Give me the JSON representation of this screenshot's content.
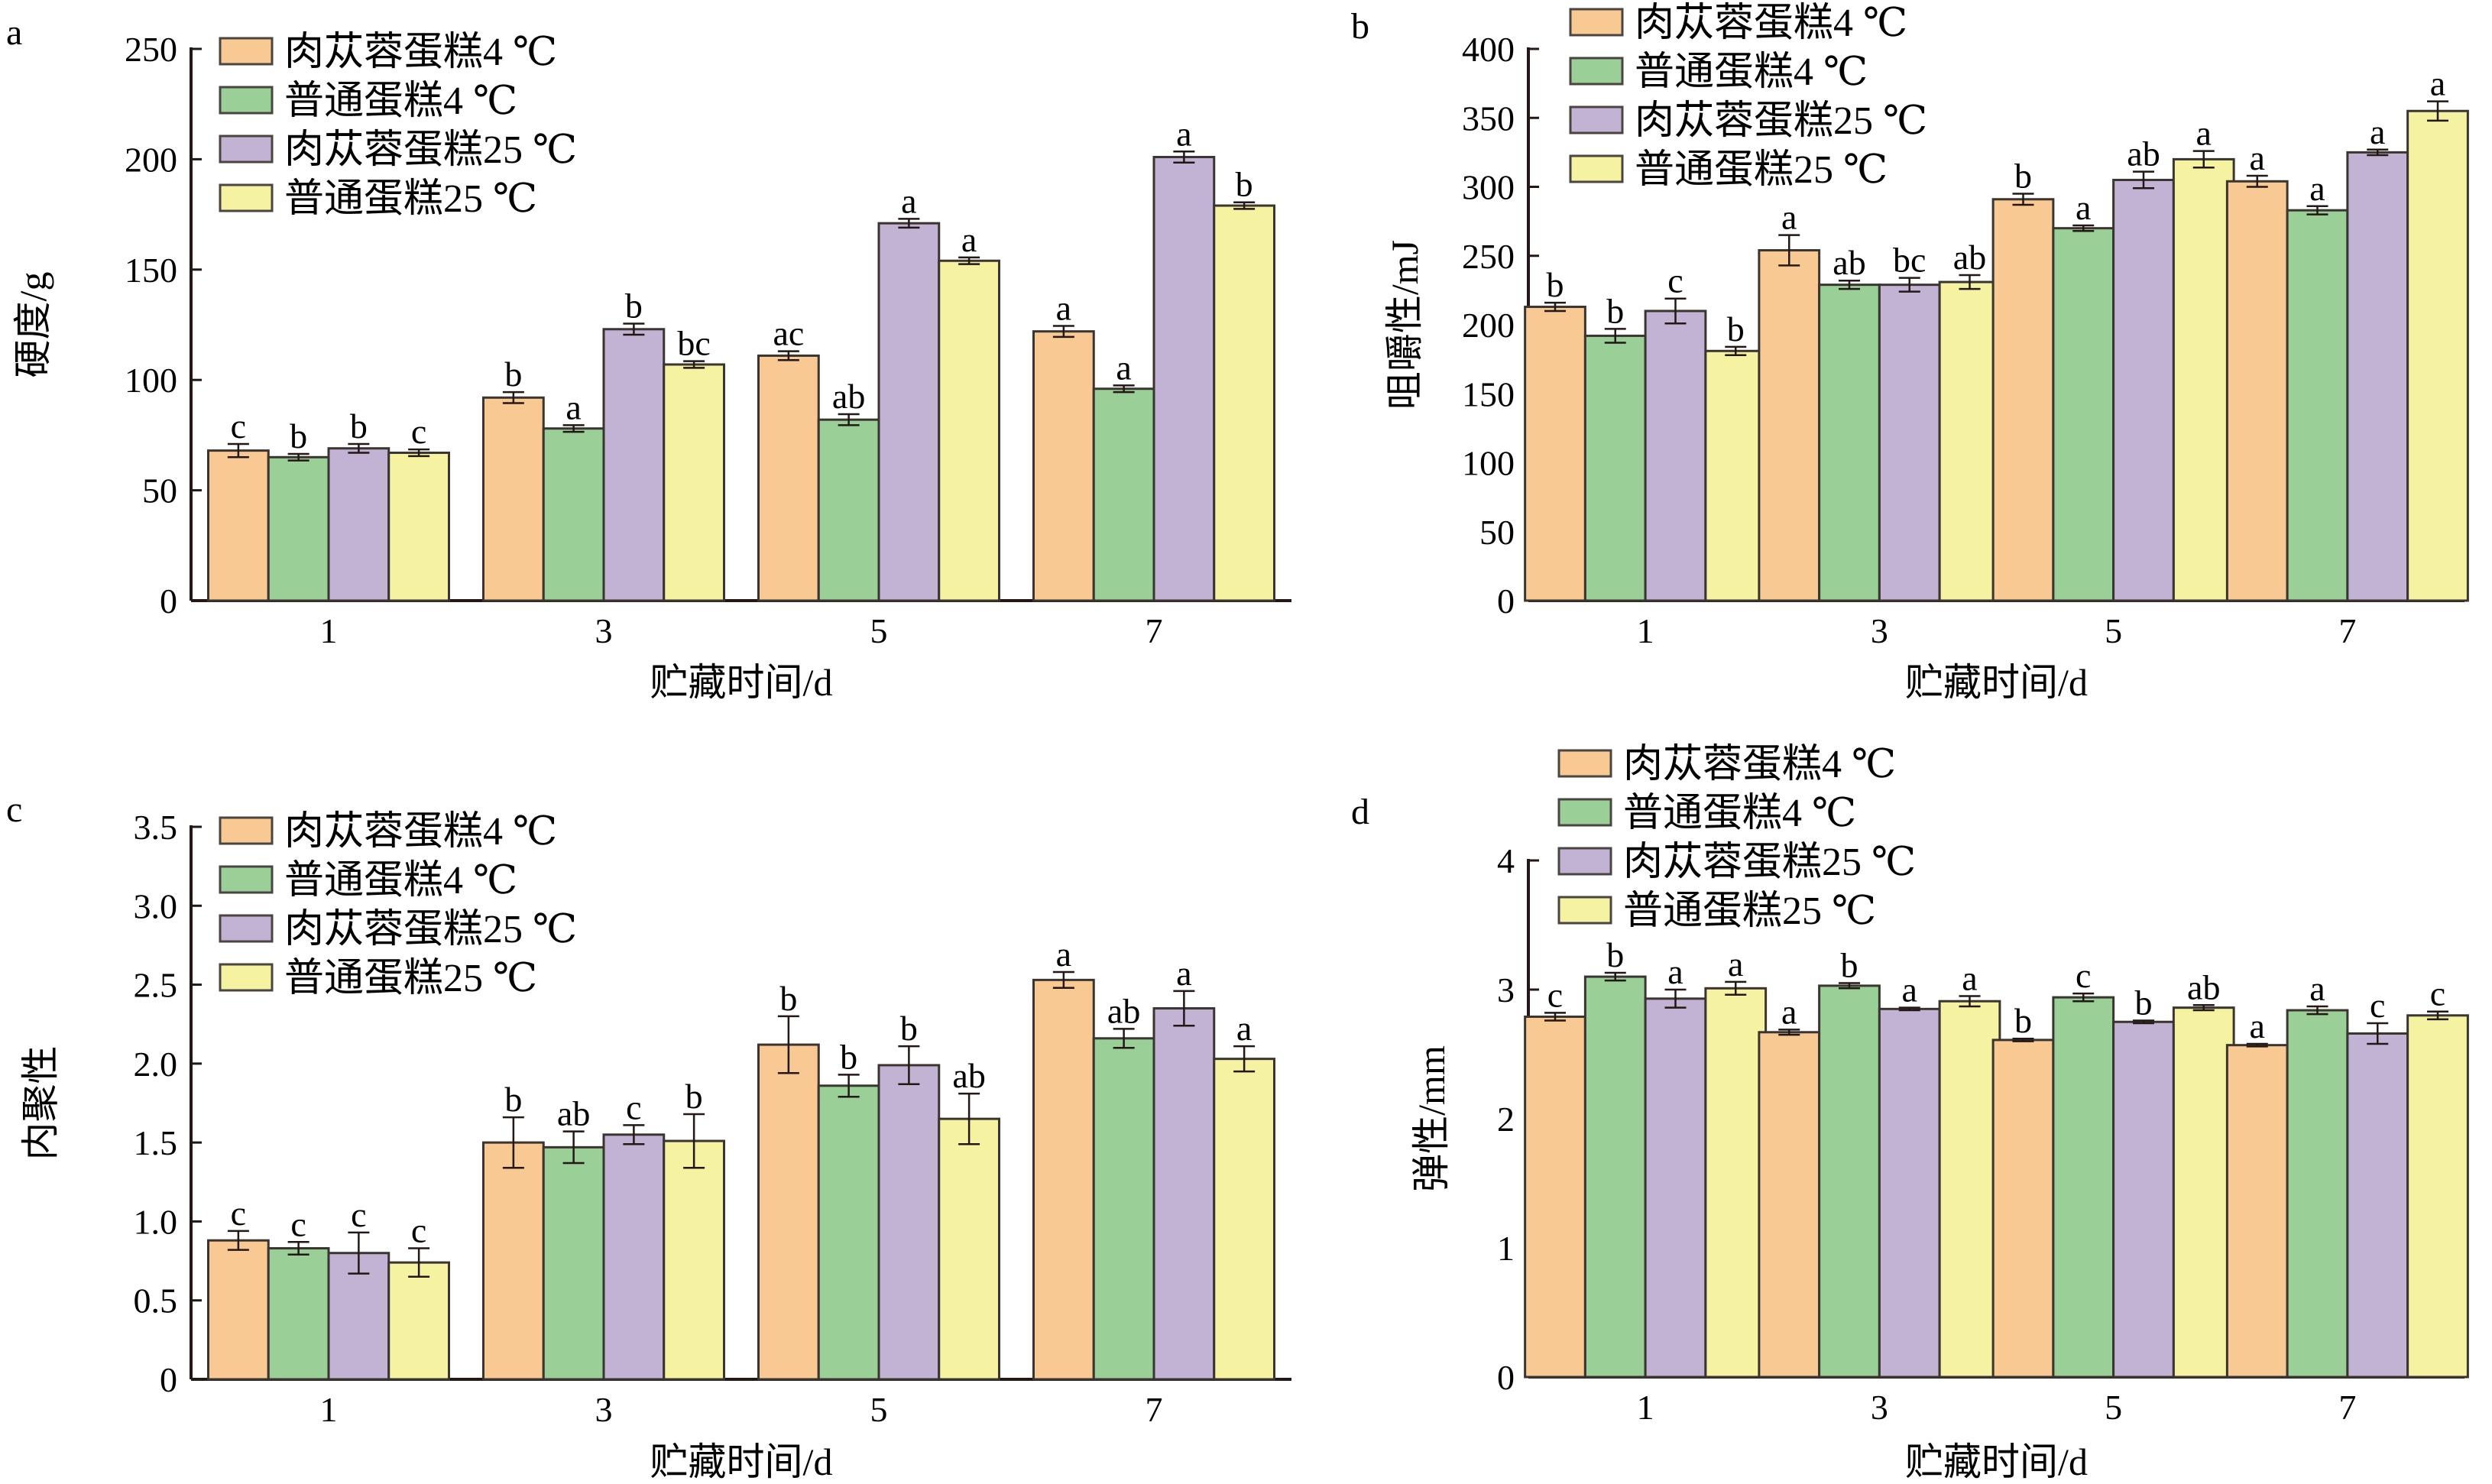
{
  "legend": [
    {
      "label": "肉苁蓉蛋糕4 ℃",
      "color": "#f8c992"
    },
    {
      "label": "普通蛋糕4 ℃",
      "color": "#9acf97"
    },
    {
      "label": "肉苁蓉蛋糕25 ℃",
      "color": "#c2b2d4"
    },
    {
      "label": "普通蛋糕25 ℃",
      "color": "#f5f2a2"
    }
  ],
  "chart_data": [
    {
      "panel": "a",
      "type": "bar",
      "title": "",
      "xlabel": "贮藏时间/d",
      "ylabel": "硬度/g",
      "categories": [
        "1",
        "3",
        "5",
        "7"
      ],
      "ylim": [
        0,
        250
      ],
      "yticks": [
        "0",
        "50",
        "100",
        "150",
        "200",
        "250"
      ],
      "ytick_values": [
        0,
        50,
        100,
        150,
        200,
        250
      ],
      "legend_position": "top-left",
      "series": [
        {
          "name": "肉苁蓉蛋糕4 ℃",
          "values": [
            68,
            92,
            111,
            122
          ],
          "errors": [
            3,
            2.5,
            2,
            2.5
          ],
          "labels": [
            "c",
            "b",
            "ac",
            "a"
          ]
        },
        {
          "name": "普通蛋糕4 ℃",
          "values": [
            65,
            78,
            82,
            96
          ],
          "errors": [
            1.5,
            1.5,
            2.5,
            1.5
          ],
          "labels": [
            "b",
            "a",
            "ab",
            "a"
          ]
        },
        {
          "name": "肉苁蓉蛋糕25 ℃",
          "values": [
            69,
            123,
            171,
            201
          ],
          "errors": [
            2,
            2.5,
            2,
            2.5
          ],
          "labels": [
            "b",
            "b",
            "a",
            "a"
          ]
        },
        {
          "name": "普通蛋糕25 ℃",
          "values": [
            67,
            107,
            154,
            179
          ],
          "errors": [
            1.5,
            1.5,
            1.5,
            1.5
          ],
          "labels": [
            "c",
            "bc",
            "a",
            "b"
          ]
        }
      ]
    },
    {
      "panel": "b",
      "type": "bar",
      "title": "",
      "xlabel": "贮藏时间/d",
      "ylabel": "咀嚼性/mJ",
      "categories": [
        "1",
        "3",
        "5",
        "7"
      ],
      "ylim": [
        0,
        400
      ],
      "yticks": [
        "0",
        "50",
        "100",
        "150",
        "200",
        "250",
        "300",
        "350",
        "400"
      ],
      "ytick_values": [
        0,
        50,
        100,
        150,
        200,
        250,
        300,
        350,
        400
      ],
      "legend_position": "top-left",
      "series": [
        {
          "name": "肉苁蓉蛋糕4 ℃",
          "values": [
            213,
            254,
            291,
            304
          ],
          "errors": [
            3,
            11,
            4,
            4
          ],
          "labels": [
            "b",
            "a",
            "b",
            "a"
          ]
        },
        {
          "name": "普通蛋糕4 ℃",
          "values": [
            192,
            229,
            270,
            283
          ],
          "errors": [
            5,
            3,
            2,
            3
          ],
          "labels": [
            "b",
            "ab",
            "a",
            "a"
          ]
        },
        {
          "name": "肉苁蓉蛋糕25 ℃",
          "values": [
            210,
            229,
            305,
            325
          ],
          "errors": [
            9,
            5,
            6,
            2
          ],
          "labels": [
            "c",
            "bc",
            "ab",
            "a"
          ]
        },
        {
          "name": "普通蛋糕25 ℃",
          "values": [
            181,
            231,
            320,
            355
          ],
          "errors": [
            3,
            5,
            6,
            7
          ],
          "labels": [
            "b",
            "ab",
            "a",
            "a"
          ]
        }
      ]
    },
    {
      "panel": "c",
      "type": "bar",
      "title": "",
      "xlabel": "贮藏时间/d",
      "ylabel": "内聚性",
      "categories": [
        "1",
        "3",
        "5",
        "7"
      ],
      "ylim": [
        0,
        3.5
      ],
      "yticks": [
        "0",
        "0.5",
        "1.0",
        "1.5",
        "2.0",
        "2.5",
        "3.0",
        "3.5"
      ],
      "ytick_values": [
        0,
        0.5,
        1.0,
        1.5,
        2.0,
        2.5,
        3.0,
        3.5
      ],
      "legend_position": "top-left",
      "series": [
        {
          "name": "肉苁蓉蛋糕4 ℃",
          "values": [
            0.88,
            1.5,
            2.12,
            2.53
          ],
          "errors": [
            0.06,
            0.16,
            0.18,
            0.05
          ],
          "labels": [
            "c",
            "b",
            "b",
            "a"
          ]
        },
        {
          "name": "普通蛋糕4 ℃",
          "values": [
            0.83,
            1.47,
            1.86,
            2.16
          ],
          "errors": [
            0.04,
            0.1,
            0.07,
            0.06
          ],
          "labels": [
            "c",
            "ab",
            "b",
            "ab"
          ]
        },
        {
          "name": "肉苁蓉蛋糕25 ℃",
          "values": [
            0.8,
            1.55,
            1.99,
            2.35
          ],
          "errors": [
            0.13,
            0.06,
            0.12,
            0.11
          ],
          "labels": [
            "c",
            "c",
            "b",
            "a"
          ]
        },
        {
          "name": "普通蛋糕25 ℃",
          "values": [
            0.74,
            1.51,
            1.65,
            2.03
          ],
          "errors": [
            0.09,
            0.17,
            0.16,
            0.08
          ],
          "labels": [
            "c",
            "b",
            "ab",
            "a"
          ]
        }
      ]
    },
    {
      "panel": "d",
      "type": "bar",
      "title": "",
      "xlabel": "贮藏时间/d",
      "ylabel": "弹性/mm",
      "categories": [
        "1",
        "3",
        "5",
        "7"
      ],
      "ylim": [
        0,
        4
      ],
      "yticks": [
        "0",
        "1",
        "2",
        "3",
        "4"
      ],
      "ytick_values": [
        0,
        1,
        2,
        3,
        4
      ],
      "legend_position": "top-left",
      "series": [
        {
          "name": "肉苁蓉蛋糕4 ℃",
          "values": [
            2.79,
            2.67,
            2.61,
            2.57
          ],
          "errors": [
            0.03,
            0.02,
            0.01,
            0.01
          ],
          "labels": [
            "c",
            "a",
            "b",
            "a"
          ]
        },
        {
          "name": "普通蛋糕4 ℃",
          "values": [
            3.1,
            3.03,
            2.94,
            2.84
          ],
          "errors": [
            0.03,
            0.02,
            0.03,
            0.03
          ],
          "labels": [
            "b",
            "b",
            "c",
            "a"
          ]
        },
        {
          "name": "肉苁蓉蛋糕25 ℃",
          "values": [
            2.93,
            2.85,
            2.75,
            2.66
          ],
          "errors": [
            0.07,
            0.01,
            0.01,
            0.08
          ],
          "labels": [
            "a",
            "a",
            "b",
            "c"
          ]
        },
        {
          "name": "普通蛋糕25 ℃",
          "values": [
            3.01,
            2.91,
            2.86,
            2.8
          ],
          "errors": [
            0.05,
            0.04,
            0.02,
            0.03
          ],
          "labels": [
            "a",
            "a",
            "ab",
            "c"
          ]
        }
      ]
    }
  ]
}
